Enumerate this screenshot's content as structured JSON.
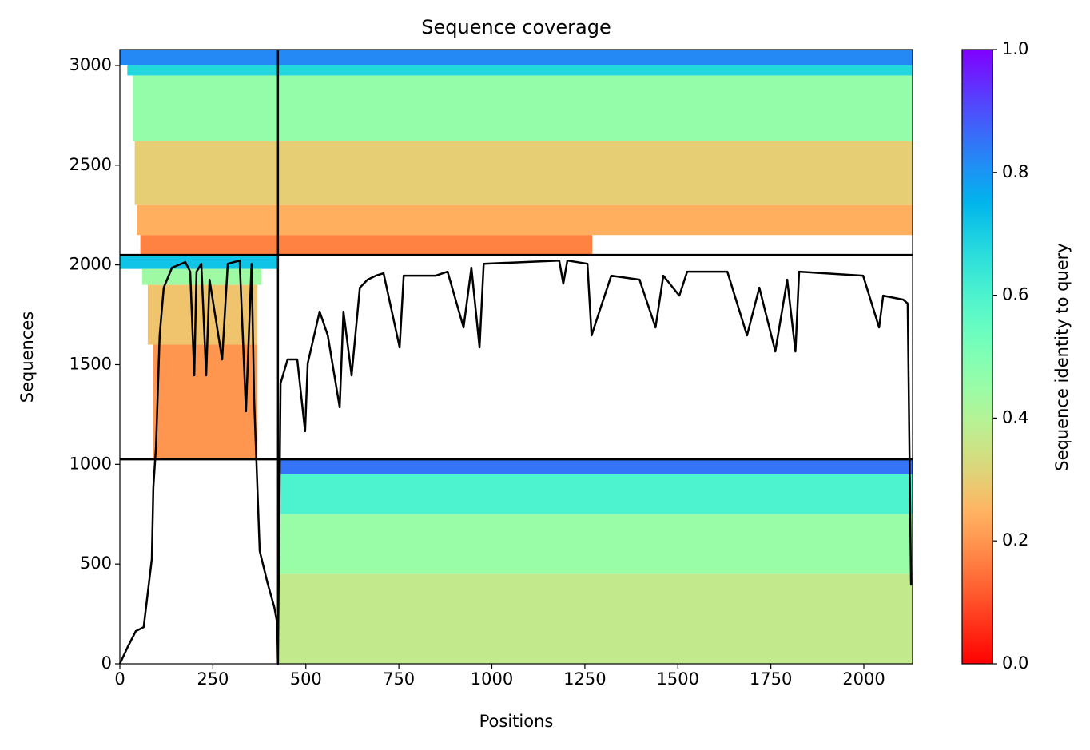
{
  "chart_data": {
    "type": "coverage",
    "title": "Sequence coverage",
    "x_label": "Positions",
    "y_label": "Sequences",
    "colorbar_label": "Sequence identity to query",
    "xlim": [
      0,
      2131
    ],
    "ylim": [
      0,
      3080
    ],
    "xticks": [
      0,
      250,
      500,
      750,
      1000,
      1250,
      1500,
      1750,
      2000
    ],
    "yticks": [
      0,
      500,
      1000,
      1500,
      2000,
      2500,
      3000
    ],
    "clim": [
      0,
      1
    ],
    "cticks": [
      {
        "value": 0,
        "label": "0.0"
      },
      0.2,
      0.4,
      0.6,
      0.8,
      {
        "value": 1,
        "label": "1.0"
      }
    ],
    "colormap": "rainbow_r",
    "x_boundaries": [
      425
    ],
    "y_boundaries": [
      1025,
      2050
    ],
    "segments": [
      {
        "x": [
          0,
          425
        ],
        "y": [
          3000,
          3080
        ],
        "identity": 0.82
      },
      {
        "x": [
          20,
          425
        ],
        "y": [
          2950,
          3000
        ],
        "identity": 0.68
      },
      {
        "x": [
          35,
          425
        ],
        "y": [
          2620,
          2950
        ],
        "identity": 0.46
      },
      {
        "x": [
          40,
          425
        ],
        "y": [
          2300,
          2620
        ],
        "identity": 0.3
      },
      {
        "x": [
          45,
          425
        ],
        "y": [
          2150,
          2300
        ],
        "identity": 0.24
      },
      {
        "x": [
          55,
          425
        ],
        "y": [
          2050,
          2150
        ],
        "identity": 0.17
      },
      {
        "x": [
          425,
          2131
        ],
        "y": [
          3000,
          3080
        ],
        "identity": 0.82
      },
      {
        "x": [
          425,
          2131
        ],
        "y": [
          2950,
          3000
        ],
        "identity": 0.68
      },
      {
        "x": [
          425,
          2131
        ],
        "y": [
          2620,
          2950
        ],
        "identity": 0.46
      },
      {
        "x": [
          425,
          2131
        ],
        "y": [
          2300,
          2620
        ],
        "identity": 0.3
      },
      {
        "x": [
          425,
          2131
        ],
        "y": [
          2150,
          2300
        ],
        "identity": 0.24
      },
      {
        "x": [
          425,
          1270
        ],
        "y": [
          2050,
          2150
        ],
        "identity": 0.17
      },
      {
        "x": [
          0,
          425
        ],
        "y": [
          1980,
          2050
        ],
        "identity": 0.72
      },
      {
        "x": [
          60,
          380
        ],
        "y": [
          1900,
          1980
        ],
        "identity": 0.44
      },
      {
        "x": [
          75,
          370
        ],
        "y": [
          1600,
          1900
        ],
        "identity": 0.28
      },
      {
        "x": [
          90,
          370
        ],
        "y": [
          1025,
          1600
        ],
        "identity": 0.2
      },
      {
        "x": [
          425,
          2131
        ],
        "y": [
          950,
          1025
        ],
        "identity": 0.85
      },
      {
        "x": [
          425,
          2131
        ],
        "y": [
          750,
          950
        ],
        "identity": 0.6
      },
      {
        "x": [
          425,
          2131
        ],
        "y": [
          450,
          750
        ],
        "identity": 0.45
      },
      {
        "x": [
          425,
          2131
        ],
        "y": [
          0,
          450
        ],
        "identity": 0.37
      }
    ],
    "coverage": {
      "x": [
        0,
        21,
        43,
        64,
        86,
        90,
        97,
        107,
        118,
        140,
        176,
        189,
        200,
        206,
        219,
        232,
        241,
        258,
        275,
        290,
        322,
        339,
        354,
        361,
        376,
        397,
        415,
        423,
        425,
        432,
        451,
        477,
        498,
        505,
        537,
        559,
        591,
        601,
        623,
        645,
        666,
        688,
        709,
        752,
        763,
        849,
        881,
        924,
        945,
        967,
        978,
        1181,
        1192,
        1203,
        1257,
        1268,
        1289,
        1321,
        1397,
        1440,
        1461,
        1504,
        1525,
        1633,
        1686,
        1719,
        1762,
        1794,
        1816,
        1826,
        1998,
        2041,
        2052,
        2106,
        2118,
        2127
      ],
      "values": [
        0,
        84,
        164,
        184,
        525,
        885,
        1085,
        1646,
        1886,
        1986,
        2014,
        1966,
        1446,
        1966,
        2006,
        1446,
        1926,
        1726,
        1526,
        2006,
        2022,
        1266,
        2006,
        1326,
        565,
        404,
        284,
        204,
        0,
        1406,
        1526,
        1526,
        1166,
        1506,
        1766,
        1646,
        1286,
        1766,
        1446,
        1886,
        1926,
        1946,
        1958,
        1586,
        1946,
        1946,
        1966,
        1686,
        1986,
        1586,
        2006,
        2022,
        1906,
        2022,
        2006,
        1646,
        1766,
        1946,
        1926,
        1686,
        1946,
        1846,
        1966,
        1966,
        1646,
        1886,
        1566,
        1926,
        1566,
        1966,
        1946,
        1686,
        1846,
        1826,
        1806,
        392
      ],
      "color": "#000000"
    }
  }
}
